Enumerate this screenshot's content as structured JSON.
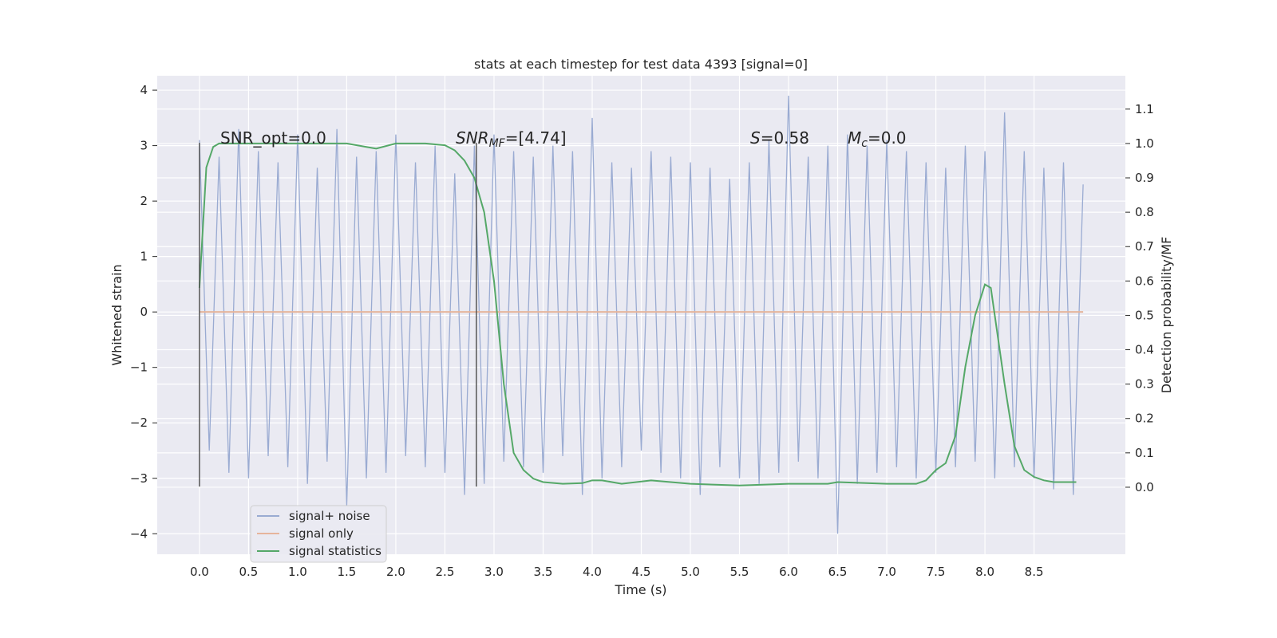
{
  "chart_data": {
    "type": "line",
    "title": "stats at each timestep for test data 4393 [signal=0]",
    "xlabel": "Time (s)",
    "ylabel": "Whitened strain",
    "y2label": "Detection probability/MF",
    "xlim": [
      -0.43,
      9.43
    ],
    "ylim": [
      -4.37,
      4.26
    ],
    "y2lim": [
      -0.195,
      1.197
    ],
    "xticks": [
      {
        "value": 0,
        "label": "0.0"
      },
      0.5,
      {
        "value": 1,
        "label": "1.0"
      },
      1.5,
      {
        "value": 2,
        "label": "2.0"
      },
      2.5,
      {
        "value": 3,
        "label": "3.0"
      },
      3.5,
      {
        "value": 4,
        "label": "4.0"
      },
      4.5,
      {
        "value": 5,
        "label": "5.0"
      },
      5.5,
      {
        "value": 6,
        "label": "6.0"
      },
      6.5,
      {
        "value": 7,
        "label": "7.0"
      },
      7.5,
      {
        "value": 8,
        "label": "8.0"
      },
      8.5
    ],
    "yticks": [
      {
        "value": -4,
        "label": "−4"
      },
      {
        "value": -3,
        "label": "−3"
      },
      {
        "value": -2,
        "label": "−2"
      },
      {
        "value": -1,
        "label": "−1"
      },
      0,
      1,
      2,
      3,
      4
    ],
    "y2ticks": [
      {
        "value": 0,
        "label": "0.0"
      },
      0.1,
      0.2,
      0.3,
      0.4,
      0.5,
      0.6,
      0.7,
      0.8,
      0.9,
      {
        "value": 1,
        "label": "1.0"
      },
      1.1
    ],
    "grid": true,
    "series": [
      {
        "name": "signal+ noise",
        "color": "#9aabd2",
        "x": [
          0,
          0.1,
          0.2,
          0.3,
          0.4,
          0.5,
          0.6,
          0.7,
          0.8,
          0.9,
          1,
          1.1,
          1.2,
          1.3,
          1.4,
          1.5,
          1.6,
          1.7,
          1.8,
          1.9,
          2,
          2.1,
          2.2,
          2.3,
          2.4,
          2.5,
          2.6,
          2.7,
          2.8,
          2.9,
          3,
          3.1,
          3.2,
          3.3,
          3.4,
          3.5,
          3.6,
          3.7,
          3.8,
          3.9,
          4,
          4.1,
          4.2,
          4.3,
          4.4,
          4.5,
          4.6,
          4.7,
          4.8,
          4.9,
          5,
          5.1,
          5.2,
          5.3,
          5.4,
          5.5,
          5.6,
          5.7,
          5.8,
          5.9,
          6,
          6.1,
          6.2,
          6.3,
          6.4,
          6.5,
          6.6,
          6.7,
          6.8,
          6.9,
          7,
          7.1,
          7.2,
          7.3,
          7.4,
          7.5,
          7.6,
          7.7,
          7.8,
          7.9,
          8,
          8.1,
          8.2,
          8.3,
          8.4,
          8.5,
          8.6,
          8.7,
          8.8,
          8.9,
          9
        ],
        "values": [
          3.1,
          -2.5,
          2.8,
          -2.9,
          3.3,
          -3.0,
          2.9,
          -2.6,
          2.7,
          -2.8,
          3.2,
          -3.1,
          2.6,
          -2.7,
          3.3,
          -3.5,
          2.8,
          -3.0,
          2.9,
          -2.9,
          3.2,
          -2.6,
          2.7,
          -2.8,
          3.0,
          -2.9,
          2.5,
          -3.3,
          3.0,
          -3.1,
          3.2,
          -2.7,
          2.9,
          -2.8,
          2.8,
          -2.9,
          3.0,
          -2.6,
          2.9,
          -3.3,
          3.5,
          -3.0,
          2.7,
          -2.8,
          2.6,
          -2.5,
          2.9,
          -2.9,
          2.8,
          -3.0,
          2.7,
          -3.3,
          2.6,
          -2.8,
          2.4,
          -3.0,
          2.7,
          -3.1,
          3.1,
          -2.9,
          3.9,
          -2.7,
          2.8,
          -3.0,
          3.0,
          -4.0,
          3.2,
          -3.1,
          3.0,
          -2.9,
          3.1,
          -2.8,
          2.9,
          -3.0,
          2.7,
          -2.9,
          2.6,
          -2.8,
          3.0,
          -2.7,
          2.9,
          -3.0,
          3.6,
          -2.8,
          2.9,
          -3.0,
          2.6,
          -3.2,
          2.7,
          -3.3,
          2.3
        ]
      },
      {
        "name": "signal only",
        "color": "#e6b59c",
        "x": [
          0,
          9
        ],
        "values": [
          0,
          0
        ]
      },
      {
        "name": "signal statistics",
        "color": "#55a868",
        "axis": "y2",
        "x": [
          0,
          0.07,
          0.14,
          0.2,
          0.5,
          1,
          1.5,
          1.7,
          1.8,
          2,
          2.3,
          2.5,
          2.6,
          2.7,
          2.8,
          2.9,
          3,
          3.1,
          3.2,
          3.3,
          3.4,
          3.5,
          3.7,
          3.9,
          4,
          4.1,
          4.3,
          4.6,
          5,
          5.5,
          6,
          6.4,
          6.5,
          7,
          7.3,
          7.4,
          7.5,
          7.6,
          7.7,
          7.8,
          7.9,
          8,
          8.06,
          8.1,
          8.2,
          8.3,
          8.4,
          8.5,
          8.6,
          8.7,
          8.93
        ],
        "values": [
          0.58,
          0.93,
          0.99,
          1.0,
          1.0,
          1.0,
          1.0,
          0.99,
          0.985,
          1.0,
          1.0,
          0.995,
          0.98,
          0.95,
          0.9,
          0.8,
          0.6,
          0.3,
          0.1,
          0.05,
          0.025,
          0.015,
          0.01,
          0.012,
          0.02,
          0.02,
          0.01,
          0.02,
          0.01,
          0.005,
          0.01,
          0.01,
          0.015,
          0.01,
          0.01,
          0.02,
          0.05,
          0.07,
          0.15,
          0.35,
          0.5,
          0.59,
          0.58,
          0.5,
          0.3,
          0.12,
          0.05,
          0.03,
          0.02,
          0.015,
          0.015
        ]
      }
    ],
    "vlines": {
      "x": [
        0,
        2.82
      ],
      "ymin": -3.15,
      "ymax": 3.05,
      "color": "#555555"
    },
    "annotations": [
      [
        {
          "text": "SNR_opt=0.0"
        }
      ],
      [
        {
          "text": "SNR",
          "style": "italic"
        },
        {
          "text": "MF",
          "style": "sub"
        },
        {
          "text": "=[4.74]"
        }
      ],
      [
        {
          "text": "S",
          "style": "italic"
        },
        {
          "text": "=0.58"
        }
      ],
      [
        {
          "text": "M",
          "style": "italic"
        },
        {
          "text": "c",
          "style": "sub"
        },
        {
          "text": "=0.0"
        }
      ]
    ]
  }
}
